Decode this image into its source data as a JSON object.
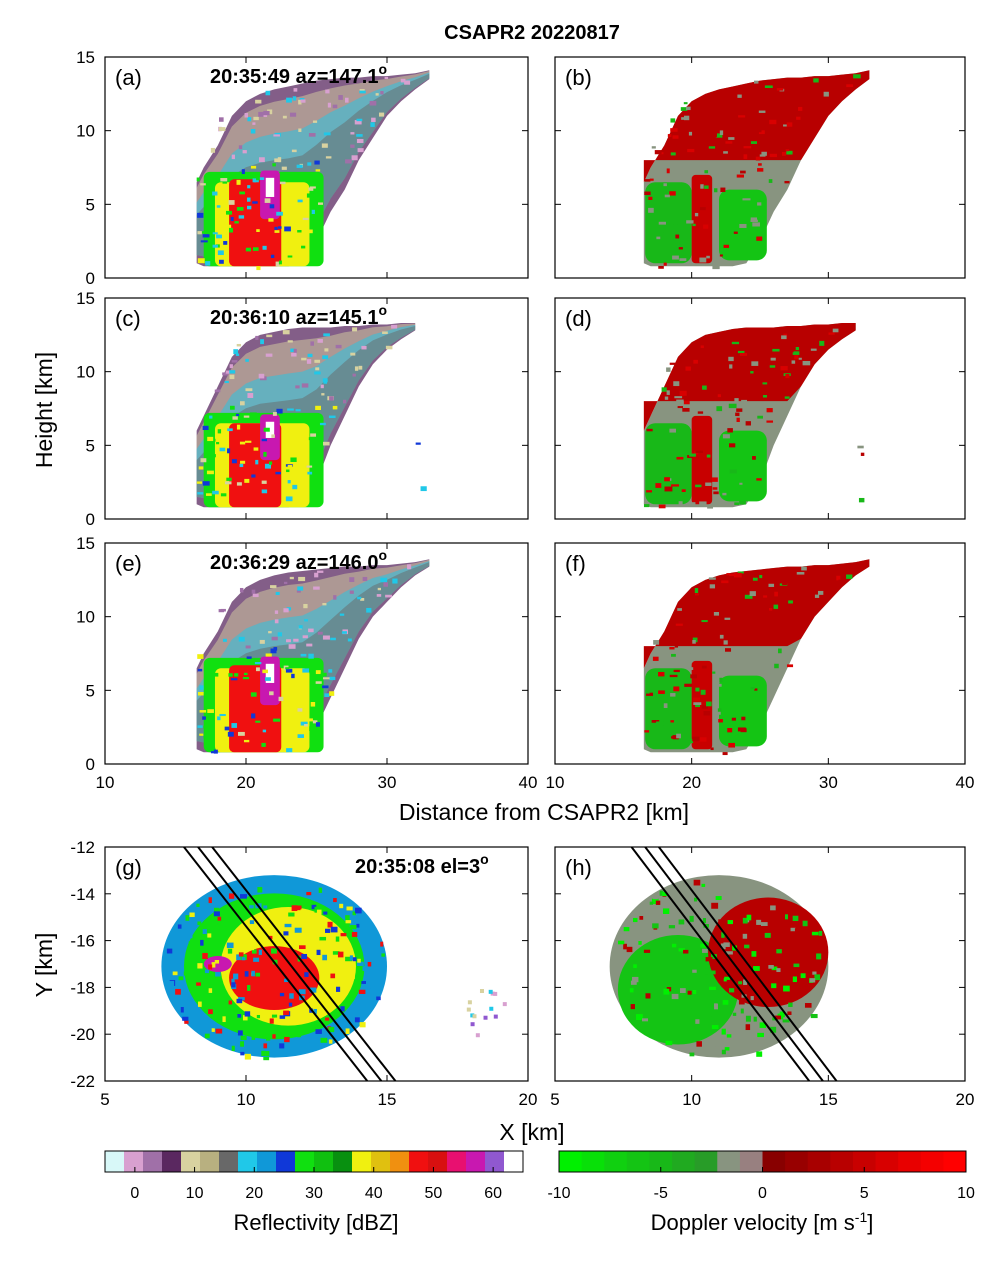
{
  "title": "CSAPR2 20220817",
  "chart_data": [
    {
      "type": "heatmap",
      "panel": "(a)",
      "annotation": "20:35:49 az=147.1",
      "annotation_sup": "o",
      "field": "reflectivity",
      "xlim": [
        10,
        40
      ],
      "ylim": [
        0,
        15
      ],
      "xticks": [
        10,
        20,
        30,
        40
      ],
      "yticks": [
        0,
        5,
        10,
        15
      ],
      "echo_top_profile": {
        "x": [
          16.5,
          17,
          18,
          19,
          20,
          21,
          22,
          23,
          24,
          25,
          26,
          27,
          28,
          29,
          30,
          31,
          32,
          33
        ],
        "top_km": [
          6.5,
          7.5,
          9,
          11,
          12,
          12.5,
          12.8,
          13,
          13.2,
          13.4,
          13.5,
          13.6,
          13.6,
          13.7,
          13.7,
          13.8,
          13.9,
          14.1
        ],
        "base_km": [
          1,
          0.8,
          0.8,
          0.8,
          0.8,
          0.8,
          0.8,
          0.8,
          1,
          2.5,
          4.5,
          6,
          8,
          9.5,
          11,
          12,
          12.8,
          13.5
        ]
      },
      "core": {
        "x_range_km": [
          18.8,
          22.5
        ],
        "top_km": 7,
        "max_dBZ": 60
      }
    },
    {
      "type": "heatmap",
      "panel": "(b)",
      "annotation": "",
      "field": "doppler_velocity",
      "xlim": [
        10,
        40
      ],
      "ylim": [
        0,
        15
      ],
      "xticks": [
        10,
        20,
        30,
        40
      ],
      "yticks": [
        0,
        5,
        10,
        15
      ]
    },
    {
      "type": "heatmap",
      "panel": "(c)",
      "annotation": "20:36:10 az=145.1",
      "annotation_sup": "o",
      "field": "reflectivity",
      "xlim": [
        10,
        40
      ],
      "ylim": [
        0,
        15
      ],
      "xticks": [
        10,
        20,
        30,
        40
      ],
      "yticks": [
        0,
        5,
        10,
        15
      ],
      "echo_top_profile": {
        "x": [
          16.5,
          17,
          18,
          19,
          20,
          21,
          22,
          23,
          24,
          25,
          26,
          27,
          28,
          29,
          30,
          31,
          32
        ],
        "top_km": [
          6,
          7,
          9,
          11,
          12,
          12.5,
          12.7,
          12.9,
          13,
          13,
          13,
          13.1,
          13.1,
          13.2,
          13.2,
          13.3,
          13.3
        ],
        "base_km": [
          1,
          0.8,
          0.8,
          0.8,
          0.8,
          0.8,
          0.8,
          0.8,
          1,
          2.5,
          5,
          7,
          9,
          10.5,
          11.5,
          12.2,
          12.8
        ]
      },
      "core": {
        "x_range_km": [
          18.8,
          22.5
        ],
        "top_km": 6.8,
        "max_dBZ": 60
      }
    },
    {
      "type": "heatmap",
      "panel": "(d)",
      "annotation": "",
      "field": "doppler_velocity",
      "xlim": [
        10,
        40
      ],
      "ylim": [
        0,
        15
      ],
      "xticks": [
        10,
        20,
        30,
        40
      ],
      "yticks": [
        0,
        5,
        10,
        15
      ]
    },
    {
      "type": "heatmap",
      "panel": "(e)",
      "annotation": "20:36:29 az=146.0",
      "annotation_sup": "o",
      "field": "reflectivity",
      "xlim": [
        10,
        40
      ],
      "ylim": [
        0,
        15
      ],
      "xticks": [
        10,
        20,
        30,
        40
      ],
      "yticks": [
        0,
        5,
        10,
        15
      ],
      "echo_top_profile": {
        "x": [
          16.5,
          17,
          18,
          19,
          20,
          21,
          22,
          23,
          24,
          25,
          26,
          27,
          28,
          29,
          30,
          31,
          32,
          33
        ],
        "top_km": [
          6.5,
          7.5,
          9,
          11,
          12,
          12.5,
          12.8,
          13,
          13.1,
          13.2,
          13.3,
          13.4,
          13.4,
          13.5,
          13.5,
          13.6,
          13.7,
          13.9
        ],
        "base_km": [
          1,
          0.8,
          0.8,
          0.8,
          0.8,
          0.8,
          0.8,
          0.8,
          1,
          2.5,
          4.5,
          6.5,
          8.5,
          10,
          11,
          12,
          12.8,
          13.4
        ]
      },
      "core": {
        "x_range_km": [
          18.8,
          22.5
        ],
        "top_km": 7,
        "max_dBZ": 60
      }
    },
    {
      "type": "heatmap",
      "panel": "(f)",
      "annotation": "",
      "field": "doppler_velocity",
      "xlim": [
        10,
        40
      ],
      "ylim": [
        0,
        15
      ],
      "xticks": [
        10,
        20,
        30,
        40
      ],
      "yticks": [
        0,
        5,
        10,
        15
      ]
    },
    {
      "type": "heatmap",
      "panel": "(g)",
      "annotation": "20:35:08 el=3",
      "annotation_sup": "o",
      "field": "reflectivity",
      "xlim": [
        5,
        20
      ],
      "ylim": [
        -22,
        -12
      ],
      "xticks": [
        5,
        10,
        15,
        20
      ],
      "yticks": [
        -22,
        -20,
        -18,
        -16,
        -14,
        -12
      ],
      "echo_extent": {
        "x_range_km": [
          7,
          15
        ],
        "y_range_km": [
          -21,
          -13.2
        ]
      },
      "tracks": [
        {
          "x": [
            7.8,
            14.3
          ],
          "y": [
            -12,
            -22
          ]
        },
        {
          "x": [
            8.3,
            14.8
          ],
          "y": [
            -12,
            -22
          ]
        },
        {
          "x": [
            8.8,
            15.3
          ],
          "y": [
            -12,
            -22
          ]
        }
      ]
    },
    {
      "type": "heatmap",
      "panel": "(h)",
      "annotation": "",
      "field": "doppler_velocity",
      "xlim": [
        5,
        20
      ],
      "ylim": [
        -22,
        -12
      ],
      "xticks": [
        5,
        10,
        15,
        20
      ],
      "yticks": [
        -22,
        -20,
        -18,
        -16,
        -14,
        -12
      ],
      "tracks": [
        {
          "x": [
            7.8,
            14.3
          ],
          "y": [
            -12,
            -22
          ]
        },
        {
          "x": [
            8.3,
            14.8
          ],
          "y": [
            -12,
            -22
          ]
        },
        {
          "x": [
            8.8,
            15.3
          ],
          "y": [
            -12,
            -22
          ]
        }
      ]
    }
  ],
  "axis_labels": {
    "rhi_x": "Distance from CSAPR2  [km]",
    "rhi_y": "Height [km]",
    "ppi_x": "X [km]",
    "ppi_y": "Y [km]"
  },
  "colorbars": {
    "reflectivity": {
      "title": "Reflectivity [dBZ]",
      "range": [
        -5,
        65
      ],
      "ticks": [
        0,
        10,
        20,
        30,
        40,
        50,
        60
      ],
      "colors": [
        "#d8f8f8",
        "#d8a0d0",
        "#a070a8",
        "#5a2860",
        "#d8d2a0",
        "#b8b080",
        "#686868",
        "#20c8e8",
        "#1098d8",
        "#1038d8",
        "#10e010",
        "#10c010",
        "#089010",
        "#f0f010",
        "#e0c010",
        "#f09010",
        "#f01010",
        "#d81010",
        "#e81070",
        "#c818b0",
        "#9058d0",
        "#ffffff"
      ]
    },
    "velocity": {
      "title": "Doppler velocity [m s",
      "title_sup": "-1",
      "title_end": "]",
      "range": [
        -10,
        10
      ],
      "ticks": [
        -10,
        -5,
        0,
        5,
        10
      ],
      "colors": [
        "#00f000",
        "#08e008",
        "#10d010",
        "#14c414",
        "#18b818",
        "#20aa20",
        "#289c28",
        "#889480",
        "#988080",
        "#880000",
        "#980000",
        "#a80000",
        "#b80000",
        "#c80000",
        "#d80000",
        "#e80000",
        "#f40000",
        "#ff0000"
      ]
    }
  },
  "colors": {
    "frame": "#000000",
    "track_lines": "#000000"
  }
}
